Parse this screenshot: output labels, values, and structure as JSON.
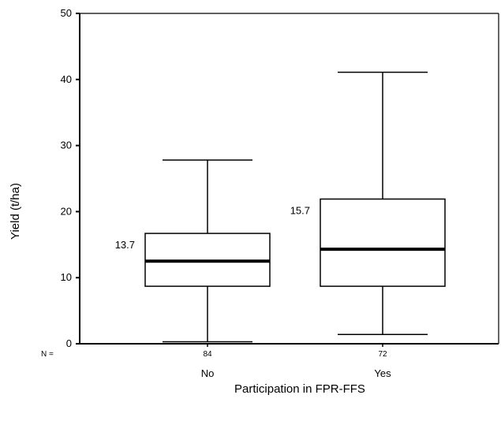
{
  "chart_data": {
    "type": "boxplot",
    "title": "",
    "xlabel": "Participation in FPR-FFS",
    "ylabel": "Yield (t/ha)",
    "ylim": [
      0,
      50
    ],
    "yticks": [
      0,
      10,
      20,
      30,
      40,
      50
    ],
    "n_prefix": "N =",
    "grid": false,
    "legend": "none",
    "categories": [
      "No",
      "Yes"
    ],
    "series": [
      {
        "category": "No",
        "n": "84",
        "min": 0.3,
        "q1": 8.7,
        "median": 12.5,
        "q3": 16.7,
        "max": 27.8,
        "annotation": "13.7"
      },
      {
        "category": "Yes",
        "n": "72",
        "min": 1.4,
        "q1": 8.7,
        "median": 14.3,
        "q3": 21.9,
        "max": 41.1,
        "annotation": "15.7"
      }
    ],
    "colors": {
      "line": "#000000",
      "box_fill": "#ffffff"
    }
  }
}
